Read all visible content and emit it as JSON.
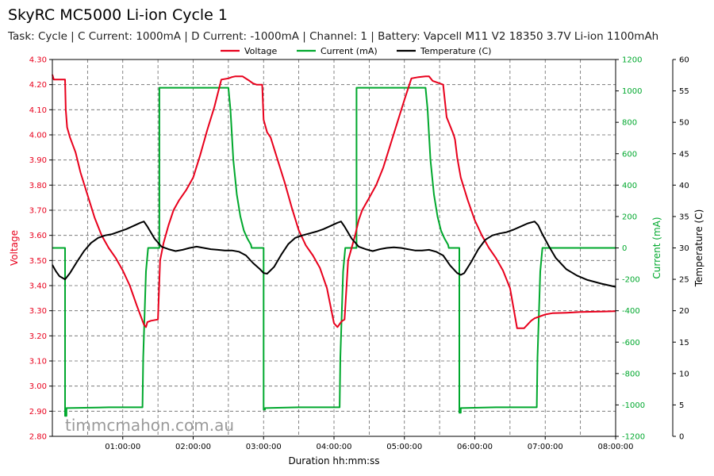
{
  "header": {
    "title": "SkyRC MC5000 Li-ion Cycle 1",
    "subtitle": "Task: Cycle | C Current: 1000mA | D Current: -1000mA | Channel: 1 | Battery: Vapcell M11 V2 18350 3.7V Li-ion 1100mAh"
  },
  "watermark": "timmcmahon.com.au",
  "chart_data": {
    "type": "line",
    "title": "SkyRC MC5000 Li-ion Cycle 1",
    "xlabel": "Duration hh:mm:ss",
    "x_unit": "hours",
    "xlim": [
      0,
      8
    ],
    "xticks": [
      1,
      2,
      3,
      4,
      5,
      6,
      7,
      8
    ],
    "xtick_labels": [
      "01:00:00",
      "02:00:00",
      "03:00:00",
      "04:00:00",
      "05:00:00",
      "06:00:00",
      "07:00:00",
      "08:00:00"
    ],
    "grid": true,
    "legend_position": "top-center",
    "axes": {
      "voltage": {
        "label": "Voltage",
        "side": "left",
        "range": [
          2.8,
          4.3
        ],
        "ticks": [
          2.8,
          2.9,
          3.0,
          3.1,
          3.2,
          3.3,
          3.4,
          3.5,
          3.6,
          3.7,
          3.8,
          3.9,
          4.0,
          4.1,
          4.2,
          4.3
        ],
        "tick_labels": [
          "2.80",
          "2.90",
          "3.00",
          "3.10",
          "3.20",
          "3.30",
          "3.40",
          "3.50",
          "3.60",
          "3.70",
          "3.80",
          "3.90",
          "4.00",
          "4.10",
          "4.20",
          "4.30"
        ],
        "color": "#e8001c"
      },
      "current": {
        "label": "Current (mA)",
        "side": "right",
        "range": [
          -1200,
          1200
        ],
        "ticks": [
          -1200,
          -1000,
          -800,
          -600,
          -400,
          -200,
          0,
          200,
          400,
          600,
          800,
          1000,
          1200
        ],
        "tick_labels": [
          "-1200",
          "-1000",
          "-800",
          "-600",
          "-400",
          "-200",
          "0",
          "200",
          "400",
          "600",
          "800",
          "1000",
          "1200"
        ],
        "color": "#00a82d"
      },
      "temperature": {
        "label": "Temperature (C)",
        "side": "right-outer",
        "range": [
          0,
          60
        ],
        "ticks": [
          0,
          5,
          10,
          15,
          20,
          25,
          30,
          35,
          40,
          45,
          50,
          55,
          60
        ],
        "tick_labels": [
          "0",
          "5",
          "10",
          "15",
          "20",
          "25",
          "30",
          "35",
          "40",
          "45",
          "50",
          "55",
          "60"
        ],
        "color": "#000000"
      }
    },
    "series": [
      {
        "name": "Voltage",
        "axis": "voltage",
        "color": "#e8001c",
        "x": [
          0,
          0.02,
          0.18,
          0.19,
          0.21,
          0.25,
          0.33,
          0.4,
          0.5,
          0.6,
          0.7,
          0.8,
          0.9,
          1.0,
          1.1,
          1.2,
          1.3,
          1.33,
          1.35,
          1.4,
          1.5,
          1.53,
          1.58,
          1.65,
          1.72,
          1.8,
          1.9,
          2.0,
          2.1,
          2.2,
          2.3,
          2.4,
          2.5,
          2.55,
          2.6,
          2.7,
          2.8,
          2.85,
          2.9,
          2.98,
          3.0,
          3.05,
          3.1,
          3.2,
          3.3,
          3.4,
          3.5,
          3.6,
          3.7,
          3.8,
          3.9,
          4.0,
          4.05,
          4.1,
          4.12,
          4.15,
          4.2,
          4.3,
          4.35,
          4.4,
          4.5,
          4.6,
          4.7,
          4.8,
          4.9,
          5.0,
          5.1,
          5.2,
          5.3,
          5.35,
          5.4,
          5.5,
          5.55,
          5.6,
          5.7,
          5.72,
          5.75,
          5.8,
          5.9,
          6.0,
          6.1,
          6.2,
          6.3,
          6.4,
          6.5,
          6.6,
          6.7,
          6.8,
          6.85,
          6.9,
          6.95,
          7.0,
          7.1,
          7.3,
          7.5,
          7.7,
          8.0
        ],
        "values": [
          4.24,
          4.22,
          4.22,
          4.1,
          4.03,
          3.99,
          3.93,
          3.85,
          3.76,
          3.67,
          3.6,
          3.55,
          3.51,
          3.46,
          3.4,
          3.32,
          3.245,
          3.235,
          3.255,
          3.26,
          3.265,
          3.5,
          3.57,
          3.64,
          3.7,
          3.74,
          3.78,
          3.83,
          3.92,
          4.02,
          4.11,
          4.22,
          4.225,
          4.23,
          4.233,
          4.233,
          4.215,
          4.205,
          4.2,
          4.2,
          4.06,
          4.01,
          3.99,
          3.9,
          3.81,
          3.71,
          3.62,
          3.56,
          3.52,
          3.47,
          3.39,
          3.25,
          3.235,
          3.255,
          3.26,
          3.265,
          3.5,
          3.6,
          3.66,
          3.7,
          3.75,
          3.8,
          3.87,
          3.96,
          4.05,
          4.14,
          4.225,
          4.23,
          4.233,
          4.233,
          4.215,
          4.205,
          4.2,
          4.07,
          4.0,
          3.98,
          3.91,
          3.83,
          3.74,
          3.66,
          3.6,
          3.55,
          3.51,
          3.46,
          3.39,
          3.23,
          3.23,
          3.26,
          3.27,
          3.275,
          3.28,
          3.285,
          3.29,
          3.292,
          3.295,
          3.296,
          3.298
        ]
      },
      {
        "name": "Current (mA)",
        "axis": "current",
        "color": "#00a82d",
        "x": [
          0,
          0.18,
          0.18,
          0.2,
          0.2,
          0.8,
          1.28,
          1.29,
          1.33,
          1.36,
          1.36,
          1.52,
          1.52,
          2.5,
          2.53,
          2.57,
          2.62,
          2.67,
          2.72,
          2.77,
          2.82,
          2.83,
          2.83,
          3.0,
          3.0,
          3.02,
          3.02,
          3.5,
          4.08,
          4.09,
          4.13,
          4.16,
          4.16,
          4.32,
          4.32,
          5.3,
          5.33,
          5.37,
          5.42,
          5.47,
          5.52,
          5.57,
          5.62,
          5.63,
          5.63,
          5.78,
          5.78,
          5.8,
          5.8,
          6.3,
          6.88,
          6.89,
          6.93,
          6.96,
          6.96,
          8.0
        ],
        "values": [
          0,
          0,
          -1070,
          -1070,
          -1020,
          -1015,
          -1015,
          -700,
          -150,
          0,
          0,
          0,
          1020,
          1020,
          880,
          560,
          340,
          200,
          110,
          60,
          20,
          0,
          0,
          0,
          -1030,
          -1030,
          -1020,
          -1015,
          -1015,
          -700,
          -150,
          0,
          0,
          0,
          1020,
          1020,
          880,
          560,
          340,
          200,
          110,
          60,
          20,
          0,
          0,
          0,
          -1050,
          -1050,
          -1020,
          -1015,
          -1015,
          -700,
          -150,
          0,
          0,
          0
        ]
      },
      {
        "name": "Temperature (C)",
        "axis": "temperature",
        "color": "#000000",
        "x": [
          0,
          0.05,
          0.1,
          0.18,
          0.25,
          0.35,
          0.45,
          0.55,
          0.65,
          0.75,
          0.85,
          0.95,
          1.05,
          1.15,
          1.25,
          1.3,
          1.35,
          1.45,
          1.55,
          1.65,
          1.75,
          1.85,
          1.95,
          2.05,
          2.15,
          2.25,
          2.35,
          2.45,
          2.55,
          2.65,
          2.75,
          2.85,
          2.95,
          3.0,
          3.05,
          3.15,
          3.25,
          3.35,
          3.45,
          3.55,
          3.65,
          3.75,
          3.85,
          3.95,
          4.05,
          4.1,
          4.15,
          4.25,
          4.35,
          4.45,
          4.55,
          4.65,
          4.75,
          4.85,
          4.95,
          5.05,
          5.15,
          5.25,
          5.35,
          5.45,
          5.55,
          5.65,
          5.75,
          5.8,
          5.85,
          5.95,
          6.05,
          6.15,
          6.25,
          6.35,
          6.45,
          6.55,
          6.65,
          6.75,
          6.85,
          6.9,
          6.95,
          7.05,
          7.15,
          7.3,
          7.45,
          7.6,
          7.8,
          8.0
        ],
        "values": [
          27.3,
          26.3,
          25.5,
          25.0,
          26.0,
          27.8,
          29.5,
          30.8,
          31.6,
          32.0,
          32.2,
          32.6,
          33.0,
          33.5,
          34.0,
          34.2,
          33.4,
          31.5,
          30.2,
          29.8,
          29.5,
          29.7,
          30.0,
          30.2,
          30.0,
          29.8,
          29.7,
          29.6,
          29.6,
          29.4,
          28.8,
          27.6,
          26.6,
          26.0,
          25.9,
          27.0,
          28.9,
          30.6,
          31.6,
          32.0,
          32.3,
          32.6,
          33.0,
          33.5,
          34.0,
          34.2,
          33.4,
          31.5,
          30.2,
          29.8,
          29.5,
          29.8,
          30.0,
          30.1,
          30.0,
          29.8,
          29.6,
          29.6,
          29.7,
          29.4,
          28.8,
          27.2,
          26.0,
          25.7,
          26.0,
          27.8,
          29.8,
          31.3,
          32.0,
          32.3,
          32.5,
          32.9,
          33.4,
          33.9,
          34.2,
          33.6,
          32.4,
          30.3,
          28.4,
          26.6,
          25.6,
          24.9,
          24.3,
          23.8
        ]
      }
    ]
  }
}
